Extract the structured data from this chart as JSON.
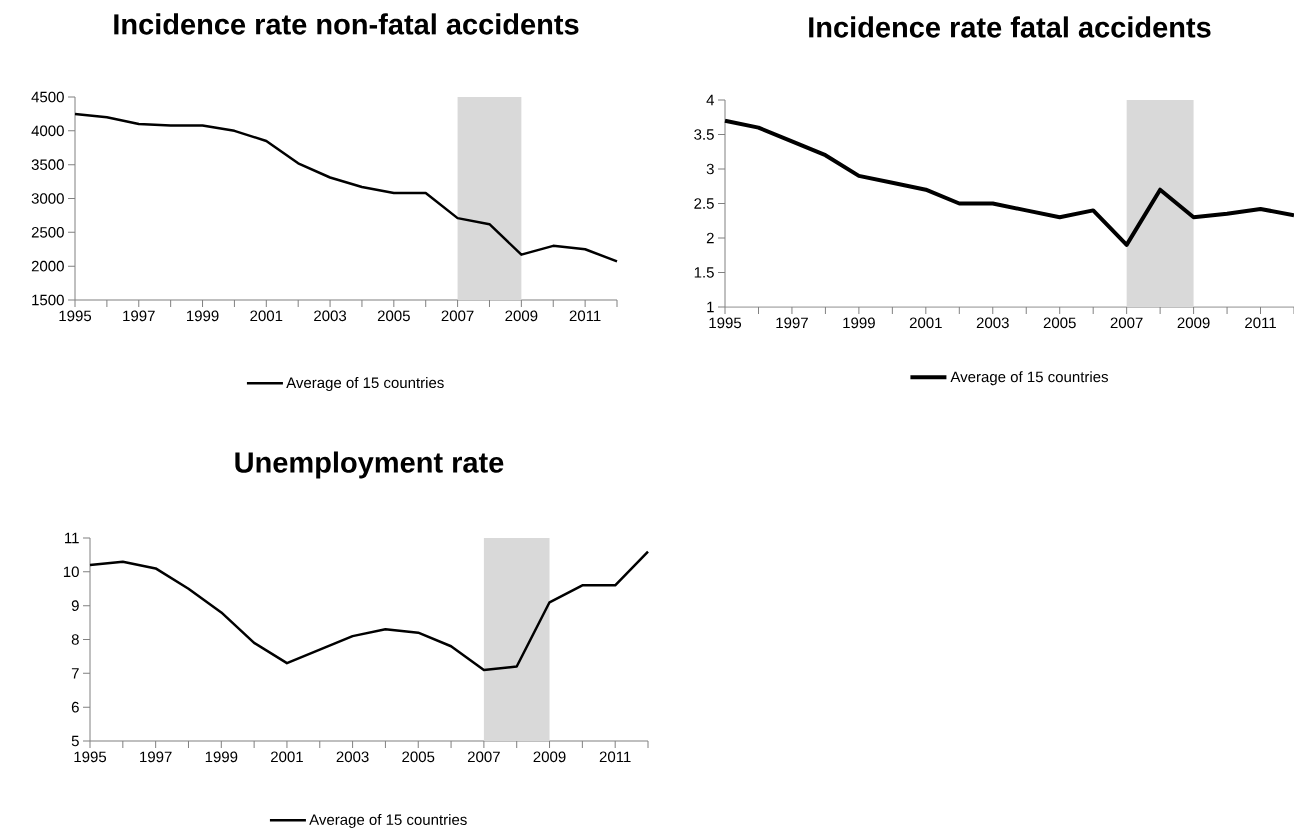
{
  "chart_data": [
    {
      "type": "line",
      "title": "Incidence rate non-fatal accidents",
      "categories": [
        "1995",
        null,
        "1997",
        null,
        "1999",
        null,
        "2001",
        null,
        "2003",
        null,
        "2005",
        null,
        "2007",
        null,
        "2009",
        null,
        "2011",
        null
      ],
      "ylim": [
        1500,
        4500
      ],
      "yticks": [
        1500,
        2000,
        2500,
        3000,
        3500,
        4000,
        4500
      ],
      "legend": "bottom",
      "bands": [
        {
          "axis": "x",
          "from": "2007",
          "to": "2009",
          "color": "#d9d9d9"
        }
      ],
      "series": [
        {
          "name": "Average of 15 countries",
          "color": "#000000",
          "values": [
            4250,
            4200,
            4100,
            4080,
            4080,
            4000,
            3850,
            3520,
            3310,
            3170,
            3080,
            3080,
            2710,
            2620,
            2170,
            2300,
            2250,
            2070
          ]
        }
      ]
    },
    {
      "type": "line",
      "title": "Incidence rate fatal accidents",
      "categories": [
        "1995",
        null,
        "1997",
        null,
        "1999",
        null,
        "2001",
        null,
        "2003",
        null,
        "2005",
        null,
        "2007",
        null,
        "2009",
        null,
        "2011",
        null
      ],
      "ylim": [
        1,
        4
      ],
      "yticks": [
        1,
        1.5,
        2,
        2.5,
        3,
        3.5,
        4
      ],
      "legend": "bottom",
      "bands": [
        {
          "axis": "x",
          "from": "2007",
          "to": "2009",
          "color": "#d9d9d9"
        }
      ],
      "series": [
        {
          "name": "Average of 15 countries",
          "color": "#000000",
          "values": [
            3.7,
            3.6,
            3.4,
            3.2,
            2.9,
            2.8,
            2.7,
            2.5,
            2.5,
            2.4,
            2.3,
            2.4,
            1.9,
            2.7,
            2.3,
            2.35,
            2.42,
            2.33
          ]
        }
      ]
    },
    {
      "type": "line",
      "title": "Unemployment rate",
      "categories": [
        "1995",
        null,
        "1997",
        null,
        "1999",
        null,
        "2001",
        null,
        "2003",
        null,
        "2005",
        null,
        "2007",
        null,
        "2009",
        null,
        "2011",
        null
      ],
      "ylim": [
        5,
        11
      ],
      "yticks": [
        5,
        6,
        7,
        8,
        9,
        10,
        11
      ],
      "legend": "bottom",
      "bands": [
        {
          "axis": "x",
          "from": "2007",
          "to": "2009",
          "color": "#d9d9d9"
        }
      ],
      "series": [
        {
          "name": "Average of 15 countries",
          "color": "#000000",
          "values": [
            10.2,
            10.3,
            10.1,
            9.5,
            8.8,
            7.9,
            7.3,
            7.7,
            8.1,
            8.3,
            8.2,
            7.8,
            7.1,
            7.2,
            9.1,
            9.6,
            9.6,
            10.6
          ]
        }
      ]
    }
  ]
}
